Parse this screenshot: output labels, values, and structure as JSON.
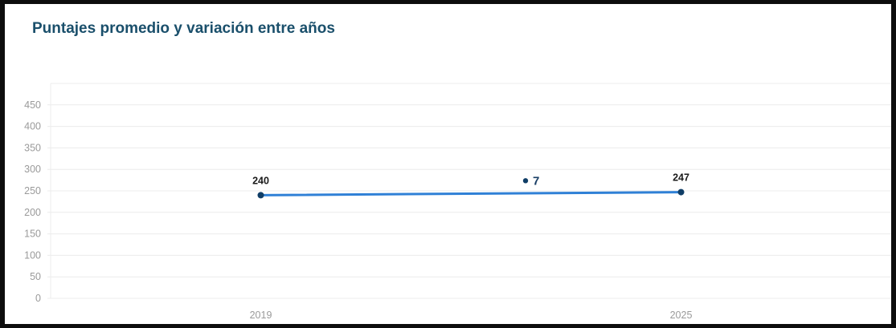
{
  "panel": {
    "title": "Puntajes promedio y variación entre años"
  },
  "chart_data": {
    "type": "line",
    "title": "Puntajes promedio y variación entre años",
    "categories": [
      "2019",
      "2025"
    ],
    "series": [
      {
        "values": [
          240,
          247
        ],
        "labels": [
          "240",
          "247"
        ]
      }
    ],
    "variation": {
      "value": 7,
      "label": "7"
    },
    "yticks": [
      0,
      50,
      100,
      150,
      200,
      250,
      300,
      350,
      400,
      450
    ],
    "ylim": [
      0,
      500
    ],
    "grid": true,
    "colors": {
      "line": "#2f80d6",
      "point": "#0f3d66",
      "title": "#1a4f6b",
      "grid": "#ececec"
    }
  }
}
